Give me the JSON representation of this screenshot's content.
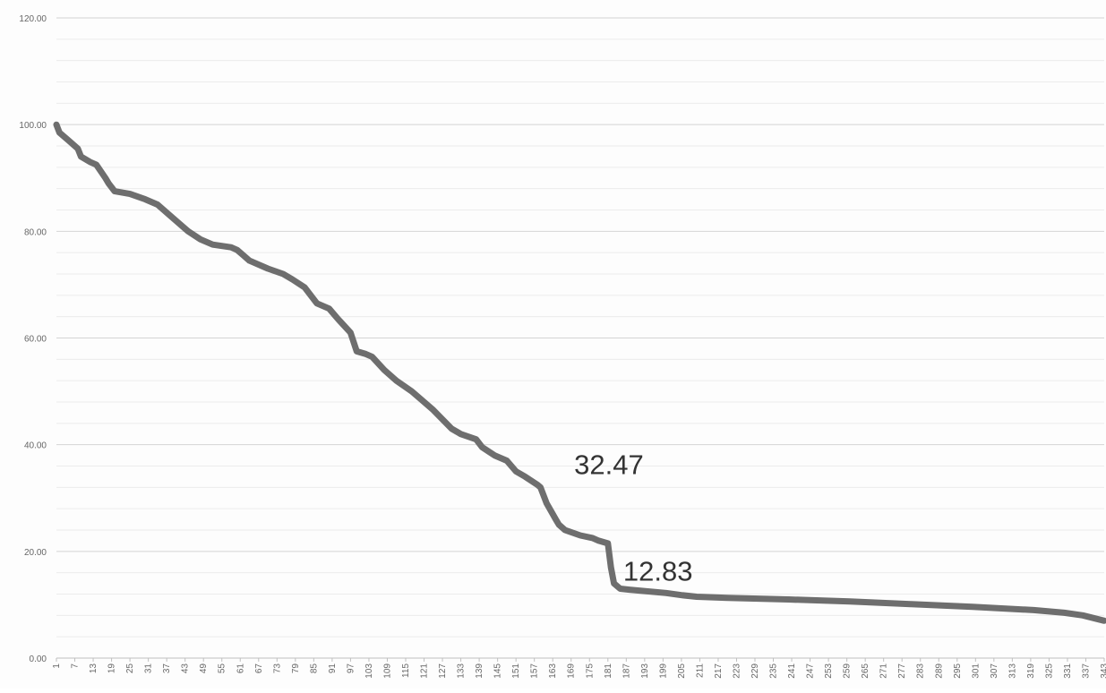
{
  "chart_data": {
    "type": "line",
    "title": "",
    "xlabel": "",
    "ylabel": "",
    "ylim": [
      0,
      120
    ],
    "xlim": [
      1,
      343
    ],
    "y_ticks": [
      "0.00",
      "20.00",
      "40.00",
      "60.00",
      "80.00",
      "100.00",
      "120.00"
    ],
    "y_tick_values": [
      0,
      20,
      40,
      60,
      80,
      100,
      120
    ],
    "x_ticks": [
      1,
      7,
      13,
      19,
      25,
      31,
      37,
      43,
      49,
      55,
      61,
      67,
      73,
      79,
      85,
      91,
      97,
      103,
      109,
      115,
      121,
      127,
      133,
      139,
      145,
      151,
      157,
      163,
      169,
      175,
      181,
      187,
      193,
      199,
      205,
      211,
      217,
      223,
      229,
      235,
      241,
      247,
      253,
      259,
      265,
      271,
      277,
      283,
      289,
      295,
      301,
      307,
      313,
      319,
      325,
      331,
      337,
      343
    ],
    "grid": true,
    "minor_grid": true,
    "legend": false,
    "colors": {
      "line": "#6e6e6e",
      "major_grid": "#d4d4d4",
      "minor_grid": "#ececec"
    },
    "series": [
      {
        "x": [
          1,
          2,
          5,
          8,
          9,
          12,
          14,
          17,
          18,
          20,
          25,
          30,
          34,
          38,
          41,
          44,
          48,
          52,
          58,
          60,
          62,
          64,
          66,
          70,
          75,
          78,
          82,
          84,
          86,
          90,
          93,
          97,
          99,
          102,
          104,
          108,
          112,
          117,
          120,
          124,
          130,
          133,
          138,
          140,
          144,
          148,
          151,
          154,
          158,
          159,
          161,
          163,
          164,
          165,
          167,
          172,
          176,
          178,
          181,
          182,
          183,
          185,
          188,
          200,
          205,
          210,
          220,
          240,
          260,
          280,
          300,
          320,
          330,
          336,
          343
        ],
        "values": [
          100,
          98.5,
          97,
          95.5,
          94,
          93,
          92.5,
          90,
          89,
          87.5,
          87,
          86,
          85,
          83,
          81.5,
          80,
          78.5,
          77.5,
          77,
          76.5,
          75.5,
          74.5,
          74,
          73,
          72,
          71,
          69.5,
          68,
          66.5,
          65.5,
          63.5,
          61,
          57.5,
          57,
          56.5,
          54,
          52,
          50,
          48.5,
          46.5,
          43,
          42,
          41,
          39.5,
          38,
          37,
          35,
          34,
          32.5,
          32,
          29,
          27,
          26,
          25,
          24,
          23,
          22.5,
          22,
          21.5,
          17,
          14,
          13,
          12.83,
          12.2,
          11.8,
          11.5,
          11.3,
          11,
          10.6,
          10.1,
          9.6,
          9,
          8.5,
          8,
          7
        ]
      }
    ],
    "annotations": [
      {
        "text": "32.47",
        "x": 170,
        "y": 34.5
      },
      {
        "text": "12.83",
        "x": 186,
        "y": 14.5
      }
    ]
  }
}
